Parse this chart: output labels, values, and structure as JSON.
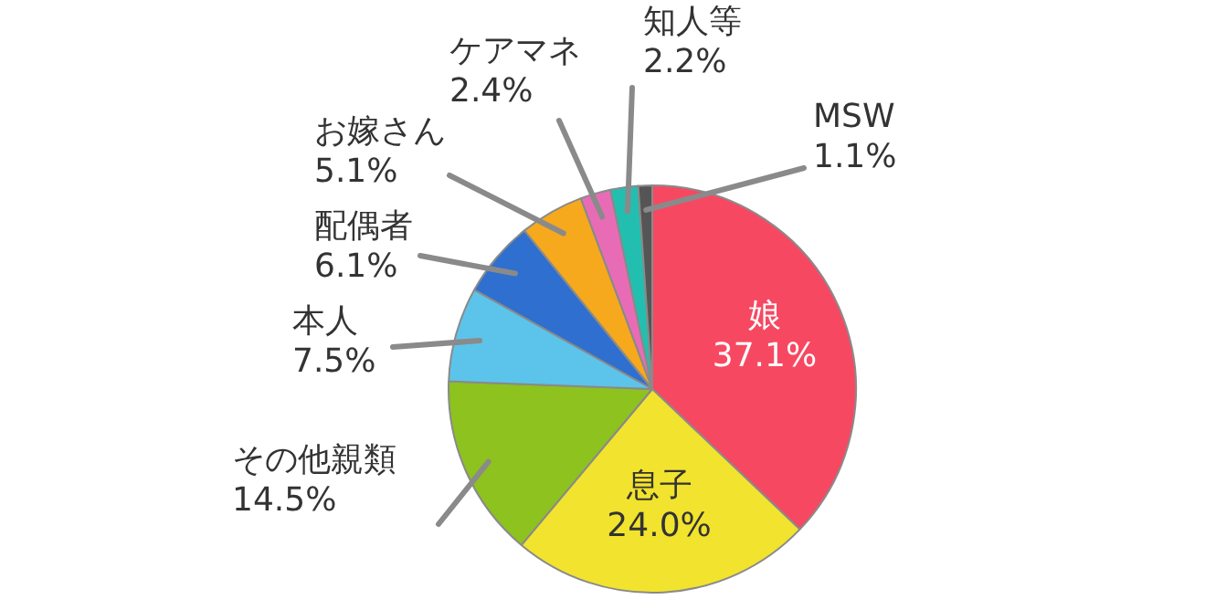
{
  "chart_data": {
    "type": "pie",
    "categories": [
      "娘",
      "息子",
      "その他親類",
      "本人",
      "配偶者",
      "お嫁さん",
      "ケアマネ",
      "知人等",
      "MSW"
    ],
    "values": [
      37.1,
      24.0,
      14.5,
      7.5,
      6.1,
      5.1,
      2.4,
      2.2,
      1.1
    ],
    "colors": [
      "#f74862",
      "#f2e32e",
      "#8dc21f",
      "#5cc4ea",
      "#2f6fcf",
      "#f6a91c",
      "#e86cb5",
      "#22bfb0",
      "#555555"
    ],
    "value_labels": [
      "37.1%",
      "24.0%",
      "14.5%",
      "7.5%",
      "6.1%",
      "5.1%",
      "2.4%",
      "2.2%",
      "1.1%"
    ]
  }
}
